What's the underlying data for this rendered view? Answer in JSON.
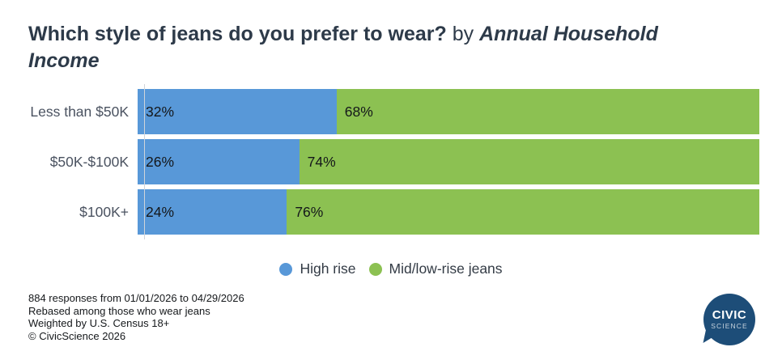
{
  "title": {
    "question": "Which style of jeans do you prefer to wear?",
    "connector": " by ",
    "segment": "Annual Household Income"
  },
  "chart_data": {
    "type": "bar",
    "stacked": true,
    "orientation": "horizontal",
    "categories": [
      "Less than $50K",
      "$50K-$100K",
      "$100K+"
    ],
    "series": [
      {
        "name": "High rise",
        "color": "#5898d8",
        "values": [
          32,
          26,
          24
        ]
      },
      {
        "name": "Mid/low-rise jeans",
        "color": "#8cc152",
        "values": [
          68,
          74,
          76
        ]
      }
    ],
    "value_format": "percent",
    "data_labels": "inside-start",
    "xlim": [
      0,
      100
    ],
    "grid": false,
    "legend_position": "bottom-center"
  },
  "footnotes": [
    "884 responses from 01/01/2026 to 04/29/2026",
    "Rebased among those who wear jeans",
    "Weighted by U.S. Census 18+",
    "© CivicScience 2026"
  ],
  "logo": {
    "line1": "CIVIC",
    "line2": "SCIENCE",
    "color": "#1d4d78"
  },
  "colors": {
    "title": "#2d3a49",
    "category_label": "#4a5260",
    "bar_label": "#14171a",
    "axis_line": "#d0d4d9"
  }
}
